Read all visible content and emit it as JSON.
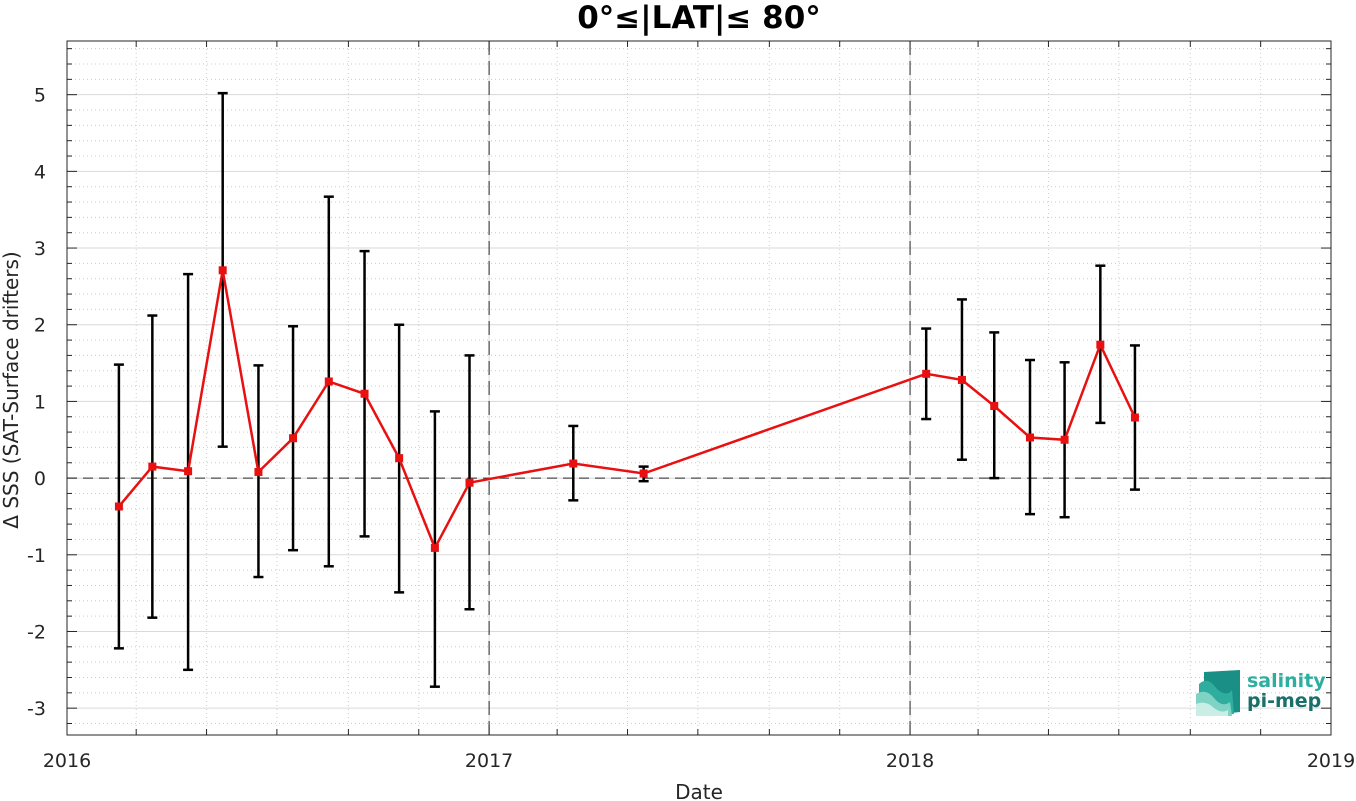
{
  "chart_data": {
    "type": "line",
    "title": "0°≤|LAT|≤ 80°",
    "xlabel": "Date",
    "ylabel": "Δ SSS (SAT-Surface drifters)",
    "xlim": [
      "2016-01-01",
      "2019-01-01"
    ],
    "ylim": [
      -3.35,
      5.7
    ],
    "x_tick_labels": [
      "2016",
      "2017",
      "2018",
      "2019"
    ],
    "y_tick_labels": [
      "-3",
      "-2",
      "-1",
      "0",
      "1",
      "2",
      "3",
      "4",
      "5"
    ],
    "grid": true,
    "reference_line_y": 0,
    "year_separators": [
      "2017-01-01",
      "2018-01-01"
    ],
    "colors": {
      "line": "#e81010",
      "marker": "#e81010",
      "errorbar": "#000000"
    },
    "series": [
      {
        "x": [
          "2016-02-15",
          "2016-03-15",
          "2016-04-15",
          "2016-05-15",
          "2016-06-15",
          "2016-07-15",
          "2016-08-15",
          "2016-09-15",
          "2016-10-15",
          "2016-11-15",
          "2016-12-15",
          "2017-03-15",
          "2017-05-15",
          "2018-01-15",
          "2018-02-15",
          "2018-03-15",
          "2018-04-15",
          "2018-05-15",
          "2018-06-15",
          "2018-07-15"
        ],
        "y": [
          -0.37,
          0.15,
          0.09,
          2.71,
          0.08,
          0.52,
          1.26,
          1.1,
          0.26,
          -0.91,
          -0.06,
          0.19,
          0.06,
          1.36,
          1.28,
          0.94,
          0.53,
          0.5,
          1.74,
          0.79
        ],
        "err_low": [
          -2.22,
          -1.82,
          -2.5,
          0.41,
          -1.29,
          -0.94,
          -1.15,
          -0.76,
          -1.49,
          -2.72,
          -1.71,
          -0.29,
          -0.04,
          0.77,
          0.24,
          0.0,
          -0.47,
          -0.51,
          0.72,
          -0.15
        ],
        "err_high": [
          1.48,
          2.12,
          2.66,
          5.02,
          1.47,
          1.98,
          3.67,
          2.96,
          2.0,
          0.87,
          1.6,
          0.68,
          0.15,
          1.95,
          2.33,
          1.9,
          1.54,
          1.51,
          2.77,
          1.73
        ]
      }
    ]
  },
  "logo": {
    "line1": "salinity",
    "line2": "pi-mep"
  }
}
